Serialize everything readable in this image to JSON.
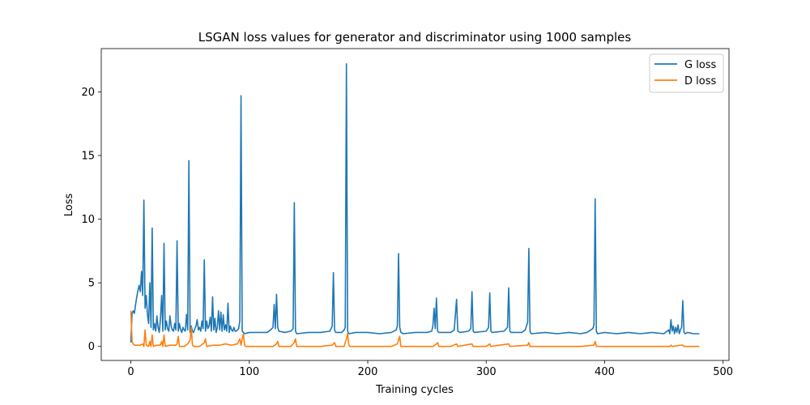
{
  "chart_data": {
    "type": "line",
    "title": "LSGAN loss values for generator and discriminator using 1000 samples",
    "xlabel": "Training cycles",
    "ylabel": "Loss",
    "xlim": [
      -25,
      505
    ],
    "ylim": [
      -1.1,
      23.4
    ],
    "xticks": [
      0,
      100,
      200,
      300,
      400,
      500
    ],
    "yticks": [
      0,
      5,
      10,
      15,
      20
    ],
    "legend_position": "upper right",
    "series": [
      {
        "name": "G loss",
        "color": "#1f77b4",
        "points": [
          [
            0,
            0.3
          ],
          [
            1,
            2.6
          ],
          [
            2,
            2.8
          ],
          [
            3,
            2.6
          ],
          [
            4,
            3.3
          ],
          [
            5,
            3.9
          ],
          [
            6,
            4.4
          ],
          [
            7,
            4.8
          ],
          [
            8,
            4.3
          ],
          [
            9,
            5.9
          ],
          [
            10,
            4.0
          ],
          [
            11,
            11.5
          ],
          [
            12,
            3.0
          ],
          [
            13,
            4.0
          ],
          [
            14,
            2.5
          ],
          [
            15,
            1.8
          ],
          [
            16,
            5.0
          ],
          [
            17,
            1.5
          ],
          [
            18,
            9.3
          ],
          [
            19,
            1.3
          ],
          [
            20,
            1.8
          ],
          [
            21,
            1.2
          ],
          [
            22,
            2.4
          ],
          [
            23,
            1.5
          ],
          [
            24,
            1.1
          ],
          [
            25,
            2.2
          ],
          [
            26,
            4.0
          ],
          [
            27,
            1.2
          ],
          [
            28,
            8.1
          ],
          [
            29,
            1.3
          ],
          [
            30,
            2.0
          ],
          [
            31,
            1.4
          ],
          [
            32,
            1.2
          ],
          [
            33,
            2.4
          ],
          [
            34,
            1.6
          ],
          [
            35,
            1.3
          ],
          [
            36,
            1.2
          ],
          [
            37,
            1.8
          ],
          [
            38,
            1.3
          ],
          [
            39,
            8.3
          ],
          [
            40,
            1.2
          ],
          [
            41,
            1.8
          ],
          [
            42,
            1.3
          ],
          [
            43,
            1.1
          ],
          [
            44,
            1.5
          ],
          [
            45,
            1.3
          ],
          [
            46,
            1.2
          ],
          [
            47,
            2.5
          ],
          [
            48,
            1.3
          ],
          [
            49,
            14.6
          ],
          [
            50,
            1.1
          ],
          [
            51,
            1.6
          ],
          [
            52,
            1.2
          ],
          [
            53,
            1.1
          ],
          [
            54,
            1.4
          ],
          [
            55,
            1.6
          ],
          [
            56,
            2.1
          ],
          [
            57,
            1.3
          ],
          [
            58,
            1.5
          ],
          [
            59,
            1.2
          ],
          [
            60,
            2.0
          ],
          [
            61,
            1.4
          ],
          [
            62,
            6.8
          ],
          [
            63,
            1.2
          ],
          [
            64,
            2.0
          ],
          [
            65,
            1.4
          ],
          [
            66,
            1.6
          ],
          [
            67,
            2.3
          ],
          [
            68,
            1.2
          ],
          [
            69,
            3.9
          ],
          [
            70,
            1.3
          ],
          [
            71,
            2.2
          ],
          [
            72,
            1.1
          ],
          [
            73,
            1.5
          ],
          [
            74,
            2.8
          ],
          [
            75,
            1.3
          ],
          [
            76,
            2.7
          ],
          [
            77,
            1.2
          ],
          [
            78,
            2.5
          ],
          [
            79,
            1.3
          ],
          [
            80,
            1.7
          ],
          [
            81,
            1.2
          ],
          [
            82,
            3.4
          ],
          [
            83,
            1.1
          ],
          [
            84,
            1.6
          ],
          [
            85,
            1.3
          ],
          [
            86,
            1.2
          ],
          [
            87,
            1.5
          ],
          [
            88,
            1.2
          ],
          [
            89,
            1.2
          ],
          [
            90,
            1.3
          ],
          [
            91,
            1.4
          ],
          [
            92,
            2.0
          ],
          [
            93,
            19.7
          ],
          [
            94,
            1.2
          ],
          [
            95,
            1.1
          ],
          [
            96,
            1.0
          ],
          [
            100,
            1.1
          ],
          [
            110,
            1.1
          ],
          [
            115,
            1.1
          ],
          [
            118,
            1.3
          ],
          [
            120,
            1.5
          ],
          [
            121,
            3.3
          ],
          [
            122,
            1.4
          ],
          [
            123,
            4.1
          ],
          [
            124,
            1.5
          ],
          [
            125,
            1.2
          ],
          [
            130,
            1.1
          ],
          [
            135,
            1.2
          ],
          [
            137,
            1.4
          ],
          [
            138,
            11.3
          ],
          [
            139,
            1.2
          ],
          [
            140,
            1.0
          ],
          [
            150,
            1.1
          ],
          [
            160,
            1.1
          ],
          [
            168,
            1.2
          ],
          [
            170,
            1.6
          ],
          [
            171,
            5.8
          ],
          [
            172,
            1.3
          ],
          [
            173,
            1.1
          ],
          [
            178,
            1.1
          ],
          [
            180,
            1.3
          ],
          [
            181,
            1.5
          ],
          [
            182,
            22.2
          ],
          [
            183,
            1.2
          ],
          [
            184,
            1.0
          ],
          [
            190,
            1.1
          ],
          [
            200,
            1.1
          ],
          [
            210,
            1.0
          ],
          [
            220,
            1.1
          ],
          [
            224,
            1.3
          ],
          [
            225,
            1.6
          ],
          [
            226,
            7.3
          ],
          [
            227,
            1.5
          ],
          [
            228,
            1.1
          ],
          [
            230,
            1.0
          ],
          [
            240,
            1.1
          ],
          [
            250,
            1.1
          ],
          [
            254,
            1.2
          ],
          [
            255,
            1.6
          ],
          [
            256,
            3.0
          ],
          [
            257,
            1.4
          ],
          [
            258,
            3.8
          ],
          [
            259,
            1.2
          ],
          [
            260,
            1.1
          ],
          [
            265,
            1.1
          ],
          [
            270,
            1.1
          ],
          [
            273,
            1.3
          ],
          [
            275,
            3.7
          ],
          [
            276,
            1.2
          ],
          [
            278,
            1.1
          ],
          [
            285,
            1.2
          ],
          [
            287,
            1.4
          ],
          [
            288,
            4.3
          ],
          [
            289,
            1.2
          ],
          [
            290,
            1.1
          ],
          [
            300,
            1.2
          ],
          [
            302,
            1.5
          ],
          [
            303,
            4.2
          ],
          [
            304,
            1.2
          ],
          [
            305,
            1.1
          ],
          [
            315,
            1.2
          ],
          [
            318,
            1.5
          ],
          [
            319,
            4.6
          ],
          [
            320,
            1.2
          ],
          [
            321,
            1.1
          ],
          [
            330,
            1.1
          ],
          [
            333,
            1.3
          ],
          [
            335,
            1.9
          ],
          [
            336,
            7.7
          ],
          [
            337,
            1.2
          ],
          [
            338,
            1.0
          ],
          [
            350,
            1.1
          ],
          [
            360,
            1.0
          ],
          [
            370,
            1.1
          ],
          [
            380,
            1.0
          ],
          [
            385,
            1.1
          ],
          [
            390,
            1.4
          ],
          [
            391,
            1.7
          ],
          [
            392,
            11.6
          ],
          [
            393,
            1.2
          ],
          [
            394,
            1.0
          ],
          [
            400,
            1.1
          ],
          [
            410,
            1.0
          ],
          [
            420,
            1.1
          ],
          [
            430,
            1.0
          ],
          [
            440,
            1.1
          ],
          [
            450,
            1.0
          ],
          [
            454,
            1.3
          ],
          [
            455,
            1.0
          ],
          [
            456,
            2.1
          ],
          [
            457,
            1.2
          ],
          [
            458,
            1.6
          ],
          [
            459,
            1.0
          ],
          [
            460,
            1.5
          ],
          [
            461,
            1.1
          ],
          [
            462,
            1.7
          ],
          [
            463,
            1.0
          ],
          [
            464,
            1.3
          ],
          [
            465,
            1.5
          ],
          [
            466,
            3.6
          ],
          [
            467,
            1.1
          ],
          [
            468,
            1.0
          ],
          [
            470,
            1.1
          ],
          [
            475,
            1.0
          ],
          [
            480,
            1.0
          ]
        ]
      },
      {
        "name": "D loss",
        "color": "#ff7f0e",
        "points": [
          [
            0,
            2.8
          ],
          [
            1,
            0.4
          ],
          [
            2,
            0.2
          ],
          [
            3,
            0.1
          ],
          [
            5,
            0.1
          ],
          [
            8,
            0.1
          ],
          [
            10,
            0.2
          ],
          [
            11,
            0.0
          ],
          [
            12,
            1.3
          ],
          [
            13,
            0.1
          ],
          [
            15,
            0.0
          ],
          [
            16,
            0.4
          ],
          [
            17,
            0.0
          ],
          [
            18,
            0.9
          ],
          [
            19,
            0.0
          ],
          [
            22,
            0.1
          ],
          [
            25,
            0.1
          ],
          [
            26,
            0.4
          ],
          [
            27,
            0.0
          ],
          [
            28,
            0.9
          ],
          [
            29,
            0.0
          ],
          [
            33,
            0.1
          ],
          [
            38,
            0.1
          ],
          [
            39,
            0.2
          ],
          [
            40,
            0.8
          ],
          [
            41,
            0.0
          ],
          [
            45,
            0.0
          ],
          [
            48,
            0.2
          ],
          [
            50,
            0.5
          ],
          [
            51,
            1.5
          ],
          [
            52,
            0.1
          ],
          [
            53,
            0.0
          ],
          [
            58,
            0.0
          ],
          [
            62,
            0.3
          ],
          [
            63,
            0.6
          ],
          [
            64,
            0.0
          ],
          [
            70,
            0.1
          ],
          [
            75,
            0.1
          ],
          [
            80,
            0.2
          ],
          [
            85,
            0.1
          ],
          [
            90,
            0.2
          ],
          [
            92,
            0.6
          ],
          [
            93,
            0.1
          ],
          [
            94,
            0.6
          ],
          [
            95,
            1.0
          ],
          [
            96,
            0.1
          ],
          [
            97,
            0.0
          ],
          [
            110,
            0.0
          ],
          [
            120,
            0.0
          ],
          [
            123,
            0.2
          ],
          [
            124,
            0.4
          ],
          [
            125,
            0.0
          ],
          [
            135,
            0.0
          ],
          [
            138,
            0.3
          ],
          [
            139,
            0.6
          ],
          [
            140,
            0.0
          ],
          [
            160,
            0.0
          ],
          [
            170,
            0.1
          ],
          [
            172,
            0.3
          ],
          [
            173,
            0.0
          ],
          [
            180,
            0.0
          ],
          [
            182,
            0.6
          ],
          [
            183,
            1.0
          ],
          [
            184,
            0.1
          ],
          [
            185,
            0.0
          ],
          [
            200,
            0.0
          ],
          [
            220,
            0.0
          ],
          [
            225,
            0.2
          ],
          [
            227,
            0.8
          ],
          [
            228,
            0.0
          ],
          [
            240,
            0.0
          ],
          [
            255,
            0.0
          ],
          [
            258,
            0.2
          ],
          [
            259,
            0.3
          ],
          [
            260,
            0.0
          ],
          [
            270,
            0.0
          ],
          [
            275,
            0.2
          ],
          [
            276,
            0.0
          ],
          [
            288,
            0.2
          ],
          [
            289,
            0.0
          ],
          [
            300,
            0.0
          ],
          [
            303,
            0.2
          ],
          [
            304,
            0.0
          ],
          [
            319,
            0.2
          ],
          [
            320,
            0.0
          ],
          [
            335,
            0.1
          ],
          [
            336,
            0.3
          ],
          [
            337,
            0.0
          ],
          [
            350,
            0.0
          ],
          [
            380,
            0.0
          ],
          [
            391,
            0.1
          ],
          [
            392,
            0.4
          ],
          [
            393,
            0.0
          ],
          [
            420,
            0.0
          ],
          [
            450,
            0.0
          ],
          [
            455,
            0.0
          ],
          [
            456,
            0.1
          ],
          [
            457,
            0.0
          ],
          [
            465,
            0.1
          ],
          [
            466,
            0.1
          ],
          [
            467,
            0.0
          ],
          [
            480,
            0.0
          ]
        ]
      }
    ]
  }
}
